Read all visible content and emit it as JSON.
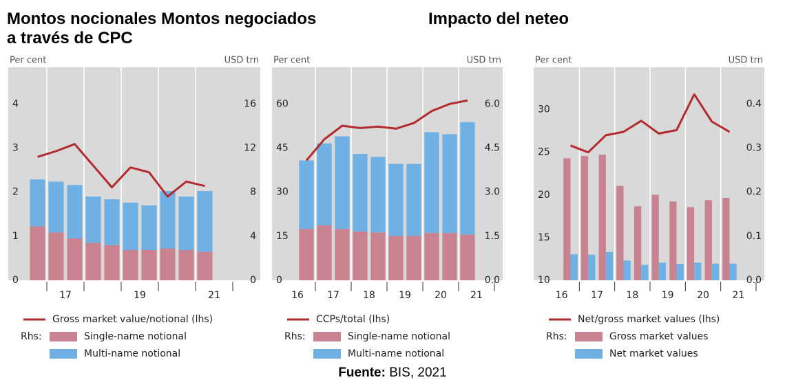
{
  "titles": [
    "Montos nocionales Montos negociados a través de CPC",
    "Impacto del neteo"
  ],
  "source": {
    "label": "Fuente:",
    "text": "BIS, 2021"
  },
  "chart_data": [
    {
      "type": "bar",
      "stacked": true,
      "y_label": "Per cent",
      "y2_label": "USD trn",
      "legend_prefix": "Rhs:",
      "categories": [
        null,
        "17",
        null,
        null,
        null,
        "19",
        null,
        null,
        null,
        "21"
      ],
      "ylim": [
        0,
        4.8
      ],
      "yticks": [
        0,
        1,
        2,
        3,
        4
      ],
      "y2lim": [
        0,
        19.2
      ],
      "y2ticks": [
        0,
        4,
        8,
        12,
        16
      ],
      "series": [
        {
          "name": "Gross market value/notional (lhs)",
          "type": "line",
          "axis": "y",
          "color": "#b22a2e",
          "values": [
            2.8,
            2.93,
            3.09,
            2.6,
            2.11,
            2.56,
            2.45,
            1.9,
            2.24,
            2.14
          ]
        },
        {
          "name": "Single-name notional",
          "axis": "y2",
          "color": "#c98290",
          "values": [
            4.9,
            4.35,
            3.8,
            3.4,
            3.2,
            2.75,
            2.75,
            2.9,
            2.75,
            2.6
          ]
        },
        {
          "name": "Multi-name notional",
          "axis": "y2",
          "color": "#6fb1e4",
          "values": [
            4.25,
            4.6,
            4.85,
            4.2,
            4.15,
            4.3,
            4.05,
            5.2,
            4.85,
            5.5
          ]
        }
      ]
    },
    {
      "type": "bar",
      "stacked": true,
      "y_label": "Per cent",
      "y2_label": "USD trn",
      "legend_prefix": "Rhs:",
      "categories": [
        "16",
        "17",
        null,
        "18",
        null,
        "19",
        null,
        "20",
        null,
        "21"
      ],
      "ylim": [
        0,
        72
      ],
      "yticks": [
        0,
        15,
        30,
        45,
        60
      ],
      "y2lim": [
        0,
        7.2
      ],
      "y2ticks": [
        {
          "value": 0,
          "label": "0.0"
        },
        1.5,
        {
          "value": 3,
          "label": "3.0"
        },
        4.5,
        {
          "value": 6,
          "label": "6.0"
        }
      ],
      "series": [
        {
          "name": "CCPs/total (lhs)",
          "type": "line",
          "axis": "y",
          "color": "#b22a2e",
          "values": [
            40.8,
            48,
            52.6,
            51.8,
            52.3,
            51.6,
            53.5,
            57.6,
            60,
            61.2
          ]
        },
        {
          "name": "Single-name notional",
          "axis": "y2",
          "color": "#c98290",
          "values": [
            1.75,
            1.87,
            1.75,
            1.66,
            1.63,
            1.51,
            1.51,
            1.61,
            1.61,
            1.56
          ]
        },
        {
          "name": "Multi-name notional",
          "axis": "y2",
          "color": "#6fb1e4",
          "values": [
            2.33,
            2.79,
            3.15,
            2.64,
            2.57,
            2.45,
            2.45,
            3.43,
            3.36,
            3.82
          ]
        }
      ]
    },
    {
      "type": "bar",
      "stacked": false,
      "y_label": "Per cent",
      "y2_label": "USD trn",
      "legend_prefix": "Rhs:",
      "categories": [
        "16",
        "17",
        null,
        "18",
        null,
        "19",
        null,
        "20",
        null,
        "21"
      ],
      "ylim": [
        10,
        34.8
      ],
      "yticks": [
        10,
        15,
        20,
        25,
        30
      ],
      "y2lim": [
        0,
        0.48
      ],
      "y2ticks": [
        {
          "value": 0,
          "label": "0.0"
        },
        0.1,
        0.2,
        0.3,
        0.4
      ],
      "series": [
        {
          "name": "Net/gross market values (lhs)",
          "type": "line",
          "axis": "y",
          "color": "#b22a2e",
          "values": [
            25.8,
            25.0,
            27.0,
            27.4,
            28.7,
            27.2,
            27.6,
            31.8,
            28.6,
            27.4
          ]
        },
        {
          "name": "Gross market values",
          "axis": "y2",
          "color": "#c98290",
          "values": [
            0.277,
            0.282,
            0.285,
            0.214,
            0.168,
            0.194,
            0.179,
            0.166,
            0.182,
            0.187
          ]
        },
        {
          "name": "Net market values",
          "axis": "y2",
          "color": "#6fb1e4",
          "values": [
            0.059,
            0.058,
            0.064,
            0.045,
            0.035,
            0.04,
            0.037,
            0.04,
            0.038,
            0.038
          ]
        }
      ]
    }
  ]
}
